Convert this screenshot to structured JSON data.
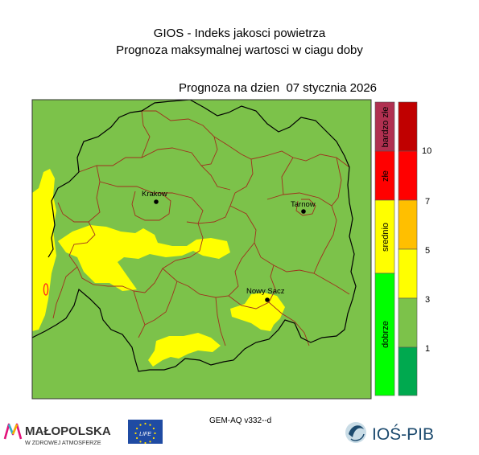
{
  "header": {
    "title_line1": "GIOS - Indeks jakosci powietrza",
    "title_line2": "Prognoza maksymalnej wartosci w ciagu doby",
    "date_prefix": "Prognoza na dzien",
    "date_value": "07 stycznia 2026"
  },
  "map": {
    "cities": [
      {
        "name": "Krakow"
      },
      {
        "name": "Tarnow"
      },
      {
        "name": "Nowy Sacz"
      }
    ],
    "colors": {
      "background_green": "#7cc24a",
      "yellow": "#ffff00",
      "county_border": "#a0301e",
      "voivodeship_border": "#000000",
      "red_spot": "#ff2020"
    }
  },
  "category_legend": {
    "items": [
      {
        "label": "bardzo złe",
        "color": "#b03050"
      },
      {
        "label": "złe",
        "color": "#ff0000"
      },
      {
        "label": "srednio",
        "color": "#ffff00"
      },
      {
        "label": "dobrze",
        "color": "#00ff00"
      }
    ]
  },
  "scale_legend": {
    "colors": [
      "#00a94f",
      "#7cc24a",
      "#ffff00",
      "#ffbf00",
      "#ff0000",
      "#c00000"
    ],
    "tick_labels": [
      "1",
      "3",
      "5",
      "7",
      "10"
    ]
  },
  "footer": {
    "model_label": "GEM-AQ v332--d",
    "malopolska_logo_text": "MAŁOPOLSKA",
    "malopolska_logo_subtext": "W ZDROWEJ ATMOSFERZE",
    "eu_logo_text": "LIFE",
    "ios_logo_text": "IOŚ-PIB"
  }
}
